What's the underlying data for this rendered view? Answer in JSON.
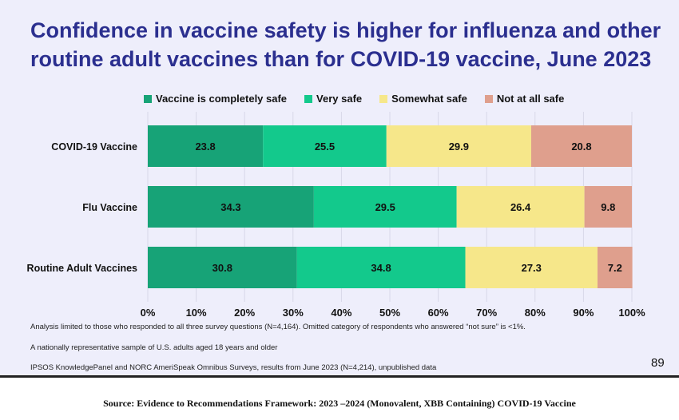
{
  "title": "Confidence in vaccine safety is higher for influenza and other routine adult vaccines than for COVID-19 vaccine, June 2023",
  "chart_data": {
    "type": "bar",
    "orientation": "horizontal-stacked",
    "categories": [
      "COVID-19 Vaccine",
      "Flu Vaccine",
      "Routine Adult Vaccines"
    ],
    "series": [
      {
        "name": "Vaccine is completely safe",
        "color": "#17a377",
        "values": [
          23.8,
          34.3,
          30.8
        ]
      },
      {
        "name": "Very safe",
        "color": "#13c98c",
        "values": [
          25.5,
          29.5,
          34.8
        ]
      },
      {
        "name": "Somewhat safe",
        "color": "#f6e78a",
        "values": [
          29.9,
          26.4,
          27.3
        ]
      },
      {
        "name": "Not at all safe",
        "color": "#df9f8d",
        "values": [
          20.8,
          9.8,
          7.2
        ]
      }
    ],
    "xlim": [
      0,
      100
    ],
    "xticks": [
      "0%",
      "10%",
      "20%",
      "30%",
      "40%",
      "50%",
      "60%",
      "70%",
      "80%",
      "90%",
      "100%"
    ],
    "grid": true,
    "legend": "top"
  },
  "notes": [
    "Analysis limited to those who responded to all three survey questions (N=4,164). Omitted category of respondents who answered “not sure” is <1%.",
    "A nationally representative sample of U.S. adults aged 18 years and older",
    "IPSOS KnowledgePanel and NORC AmeriSpeak Omnibus Surveys, results from June 2023 (N=4,214), unpublished data"
  ],
  "page_number": "89",
  "source": "Source: Evidence to Recommendations Framework: 2023 –2024 (Monovalent, XBB Containing) COVID-19 Vaccine"
}
